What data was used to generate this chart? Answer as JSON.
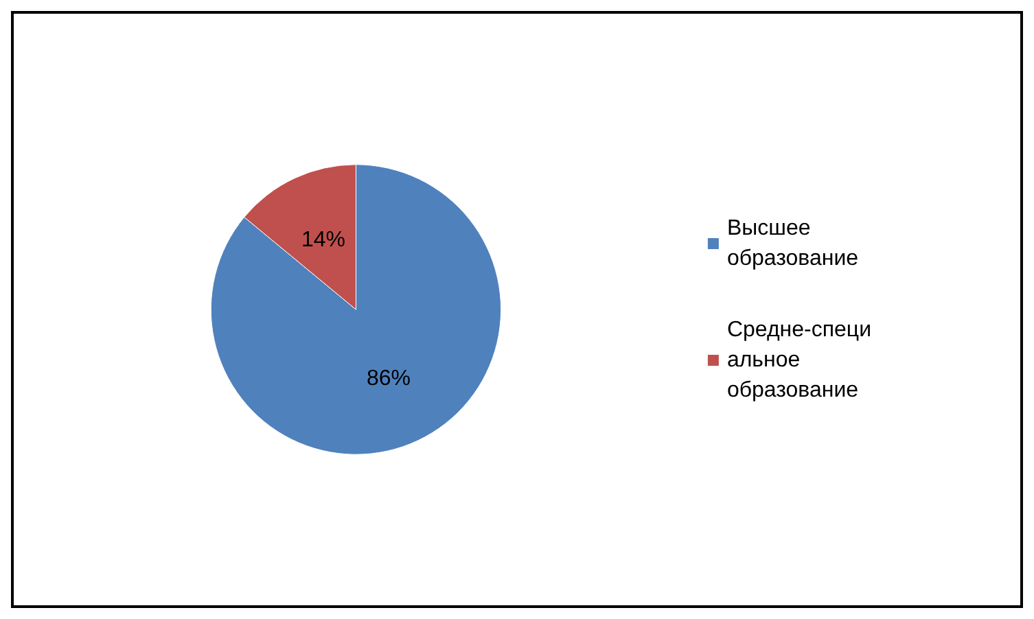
{
  "chart_data": {
    "type": "pie",
    "categories": [
      "Высшее образование",
      "Средне-специальное образование"
    ],
    "values": [
      86,
      14
    ],
    "colors": [
      "#4f81bd",
      "#c0504d"
    ],
    "value_labels": [
      "86%",
      "14%"
    ],
    "legend": "right"
  }
}
